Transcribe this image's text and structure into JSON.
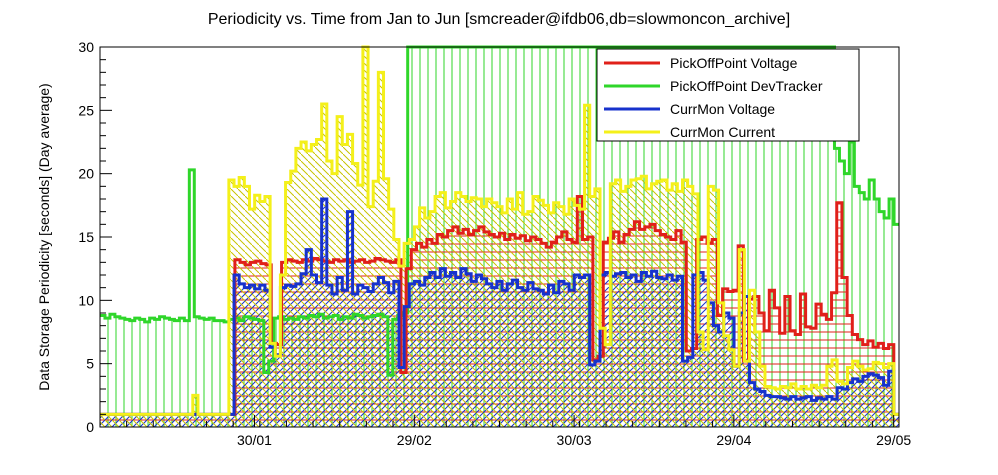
{
  "chart_data": {
    "type": "line",
    "title": "Periodicity vs. Time from Jan to Jun [smcreader@ifdb06,db=slowmoncon_archive]",
    "xlabel": "",
    "ylabel": "Data Storage Periodicity [seconds] (Day average)",
    "ylim": [
      0,
      30
    ],
    "yticks": [
      0,
      5,
      10,
      15,
      20,
      25,
      30
    ],
    "x_tick_labels": [
      "30/01",
      "29/02",
      "30/03",
      "29/04",
      "29/05"
    ],
    "x_tick_days": [
      29,
      59,
      89,
      119,
      149
    ],
    "xlim_days": [
      0,
      150
    ],
    "grid": false,
    "legend_position": "top-right",
    "series": [
      {
        "name": "PickOffPoint Voltage",
        "color": "#e0201a",
        "fill": "hatch-horizontal",
        "values": [
          1,
          1,
          1,
          1,
          1,
          1,
          1,
          1,
          1,
          1,
          1,
          1,
          1,
          1,
          1,
          1,
          1,
          1,
          1,
          1,
          1,
          1,
          1,
          1,
          1,
          1,
          13.2,
          13,
          12.8,
          13,
          13.1,
          12.9,
          12.8,
          6.6,
          6.5,
          13,
          13.2,
          13.1,
          13,
          13.2,
          13.1,
          13.3,
          13.2,
          13.1,
          13,
          13.2,
          13.1,
          13.2,
          13,
          13.1,
          13.2,
          13,
          13.1,
          13.3,
          13.2,
          13.1,
          13,
          13.2,
          4.3,
          12.5,
          14,
          14.5,
          14.2,
          14.8,
          14.5,
          15.2,
          15,
          15.5,
          15.8,
          15.3,
          15.6,
          15.2,
          15.5,
          15.8,
          15.4,
          15.2,
          15,
          15.3,
          14.8,
          15.2,
          14.9,
          15.1,
          14.7,
          15,
          14.8,
          14.5,
          14.2,
          14.6,
          15,
          15.4,
          14.8,
          14.6,
          18.2,
          14.8,
          15,
          5.3,
          5.6,
          14.6,
          14.9,
          15.4,
          14.6,
          15.2,
          15.6,
          16.2,
          15.6,
          15.8,
          16,
          15.5,
          15.2,
          15,
          14.8,
          15.5,
          14.6,
          6,
          6.2,
          14.8,
          15,
          14.5,
          14.8,
          8.8,
          10.9,
          10.7,
          10.8,
          14.3,
          5.2,
          10.1,
          10.3,
          9,
          7.6,
          10.8,
          9.4,
          7.4,
          10.3,
          7.6,
          7.3,
          10.5,
          7.9,
          7.8,
          9.7,
          8.9,
          8.5,
          10.6,
          17.7,
          11.8,
          8.8,
          7.3,
          6.9,
          6.5,
          6.8,
          6.3,
          6.6,
          6.2,
          6.5,
          1
        ]
      },
      {
        "name": "PickOffPoint DevTracker",
        "color": "#2fd62a",
        "fill": "hatch-vertical",
        "values": [
          8.8,
          8.6,
          8.9,
          8.7,
          8.6,
          8.5,
          8.4,
          8.6,
          8.5,
          8.3,
          8.6,
          8.5,
          8.7,
          8.6,
          8.5,
          8.4,
          8.6,
          8.4,
          20.3,
          8.7,
          8.6,
          8.5,
          8.6,
          8.4,
          8.4,
          8.3,
          8.5,
          8.6,
          8.4,
          8.7,
          8.6,
          8.5,
          8.4,
          4.3,
          5.2,
          8.6,
          8.7,
          8.5,
          8.6,
          8.5,
          8.7,
          8.6,
          8.8,
          8.7,
          8.9,
          8.6,
          8.7,
          8.8,
          8.5,
          8.7,
          8.6,
          8.9,
          8.8,
          8.6,
          8.7,
          8.8,
          8.9,
          8.7,
          4.1,
          8.5,
          8.8,
          9,
          30,
          30,
          30,
          30,
          30,
          30,
          30,
          30,
          30,
          30,
          30,
          30,
          30,
          30,
          30,
          30,
          30,
          30,
          30,
          30,
          30,
          30,
          30,
          30,
          30,
          30,
          30,
          30,
          30,
          30,
          30,
          30,
          30,
          30,
          30,
          30,
          30,
          30,
          30,
          30,
          30,
          30,
          30,
          30,
          30,
          30,
          30,
          30,
          30,
          30,
          30,
          30,
          30,
          30,
          30,
          30,
          30,
          30,
          30,
          30,
          30,
          30,
          30,
          30,
          30,
          30,
          30,
          30,
          30,
          30,
          30,
          30,
          30,
          30,
          30,
          30,
          30,
          30,
          30,
          30,
          30,
          30,
          30,
          30,
          30,
          30,
          22,
          21,
          20,
          22.5,
          19,
          18.5,
          18,
          19.5,
          18,
          17,
          16.5,
          18,
          16
        ]
      },
      {
        "name": "CurrMon Voltage",
        "color": "#1732cc",
        "fill": "hatch-diagonal",
        "values": [
          1,
          1,
          1,
          1,
          1,
          1,
          1,
          1,
          1,
          1,
          1,
          1,
          1,
          1,
          1,
          1,
          1,
          1,
          1,
          1,
          1,
          1,
          1,
          1,
          1,
          1,
          12,
          11.3,
          11,
          11.2,
          10.9,
          11.2,
          10.8,
          6.3,
          5.7,
          11,
          11.2,
          11.1,
          11.3,
          12.1,
          14,
          12,
          11.4,
          18,
          11.2,
          10.5,
          11.8,
          10.8,
          17,
          10.5,
          11.2,
          11,
          10.7,
          11.3,
          11.8,
          11.4,
          10.6,
          11.5,
          4.7,
          9.5,
          11.3,
          11.5,
          11.2,
          11.8,
          12.2,
          11.8,
          12.5,
          11.9,
          12.2,
          11.8,
          12.5,
          12.1,
          11.5,
          12,
          11.7,
          11.3,
          11,
          11.5,
          10.8,
          11.3,
          11.6,
          11,
          10.8,
          11.4,
          10.9,
          10.8,
          10.5,
          11.2,
          10.6,
          11.5,
          11.3,
          10.8,
          12,
          11.8,
          12,
          4.9,
          5.2,
          12,
          12.2,
          11.9,
          12.1,
          12.2,
          11.8,
          12,
          11.5,
          12.2,
          11.9,
          12.3,
          11.8,
          11.7,
          12,
          11.6,
          11.9,
          5.2,
          5.5,
          12,
          12.2,
          11.6,
          9.8,
          8,
          7.5,
          9,
          8.6,
          4.8,
          9,
          10.3,
          3.5,
          3,
          2.8,
          2.5,
          2.4,
          2.4,
          2.3,
          2.2,
          2.4,
          2.2,
          2.3,
          2.4,
          2.1,
          2.3,
          2.2,
          2.4,
          2.2,
          3.1,
          3,
          3.5,
          3.8,
          3.6,
          4,
          4.2,
          4.1,
          3.9,
          3.3,
          4.4,
          1
        ]
      },
      {
        "name": "CurrMon Current",
        "color": "#f4f01a",
        "fill": "hatch-diagonal-reverse",
        "values": [
          1,
          1,
          1,
          1,
          1,
          1,
          1,
          1,
          1,
          1,
          1,
          1,
          1,
          1,
          1,
          1,
          1,
          1,
          2.5,
          1,
          1,
          1,
          1,
          1,
          1,
          19.5,
          19,
          19.7,
          19,
          17.2,
          18.3,
          17.8,
          18.2,
          6.6,
          5.6,
          12,
          19.3,
          20.2,
          22,
          22.5,
          21.8,
          22.3,
          22.7,
          25.5,
          21,
          20,
          24.5,
          22.3,
          23.1,
          20.8,
          19.1,
          30,
          17.4,
          19.4,
          28,
          19.6,
          17.2,
          14.8,
          12.7,
          14.5,
          14.8,
          15.8,
          17.3,
          16.5,
          17,
          18.2,
          18.5,
          17.3,
          17.8,
          18.5,
          18.2,
          17.8,
          18.1,
          18,
          17.4,
          18,
          17.7,
          17.4,
          16.9,
          18,
          17.2,
          18.5,
          16.8,
          17,
          18.2,
          17.9,
          17.5,
          16.9,
          17.7,
          17.4,
          16.8,
          18,
          17.5,
          17.2,
          25.4,
          18.2,
          18.8,
          7.8,
          6.5,
          19.2,
          19.5,
          18.6,
          19,
          19.5,
          19.6,
          19.8,
          18.8,
          19.2,
          19.4,
          19.5,
          18.7,
          19.2,
          18.6,
          19.5,
          19,
          18.4,
          7.5,
          6.1,
          19,
          18.7,
          9.8,
          7.2,
          6.1,
          4.8,
          14,
          5.2,
          10.8,
          7.5,
          4.8,
          3.2,
          3.1,
          3,
          3.2,
          3.1,
          3.4,
          3,
          3.2,
          3,
          3.3,
          3.1,
          3.3,
          4.8,
          5.3,
          3.6,
          3.4,
          4.7,
          5.2,
          4.8,
          4.5,
          4.6,
          5.1,
          5,
          4.7,
          5,
          1
        ]
      }
    ]
  }
}
